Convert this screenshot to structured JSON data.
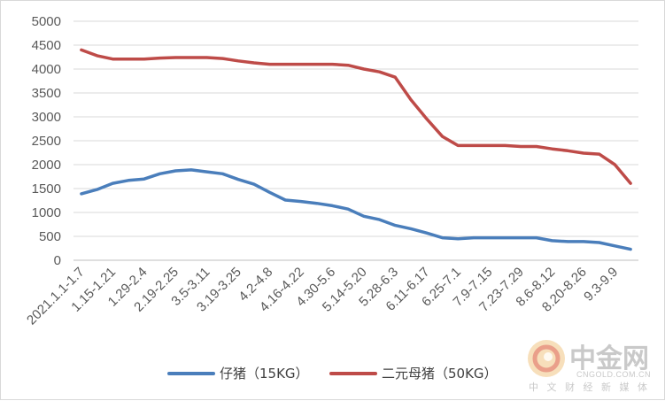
{
  "chart_data": {
    "type": "line",
    "title": "",
    "xlabel": "",
    "ylabel": "",
    "ylim": [
      0,
      5000
    ],
    "yticks": [
      0,
      500,
      1000,
      1500,
      2000,
      2500,
      3000,
      3500,
      4000,
      4500,
      5000
    ],
    "grid": true,
    "legend_position": "bottom",
    "x": [
      "2021.1.1-1.7",
      "",
      "1.15-1.21",
      "",
      "1.29-2.4",
      "",
      "2.19-2.25",
      "",
      "3.5-3.11",
      "",
      "3.19-3.25",
      "",
      "4.2-4.8",
      "",
      "4.16-4.22",
      "",
      "4.30-5.6",
      "",
      "5.14-5.20",
      "",
      "5.28-6.3",
      "",
      "6.11-6.17",
      "",
      "6.25-7.1",
      "",
      "7.9-7.15",
      "",
      "7.23-7.29",
      "",
      "8.6-8.12",
      "",
      "8.20-8.26",
      "",
      "9.3-9.9",
      ""
    ],
    "series": [
      {
        "name": "仔猪（15KG）",
        "color": "#4a7ebb",
        "values": [
          1390,
          1480,
          1610,
          1670,
          1700,
          1810,
          1870,
          1890,
          1850,
          1810,
          1690,
          1590,
          1420,
          1260,
          1230,
          1190,
          1140,
          1070,
          920,
          850,
          730,
          660,
          570,
          470,
          450,
          470,
          470,
          470,
          470,
          470,
          410,
          390,
          390,
          370,
          300,
          230
        ]
      },
      {
        "name": "二元母猪（50KG）",
        "color": "#be4b48",
        "values": [
          4400,
          4280,
          4210,
          4210,
          4210,
          4230,
          4240,
          4240,
          4240,
          4220,
          4170,
          4130,
          4100,
          4100,
          4100,
          4100,
          4100,
          4080,
          4000,
          3940,
          3830,
          3360,
          2960,
          2590,
          2400,
          2400,
          2400,
          2400,
          2380,
          2380,
          2330,
          2290,
          2240,
          2220,
          2000,
          1610
        ]
      }
    ]
  },
  "watermark": {
    "logo_text": "中金网",
    "domain": "CNGOLD.COM.CN",
    "tagline": "中 文 财 经 新 媒 体"
  }
}
